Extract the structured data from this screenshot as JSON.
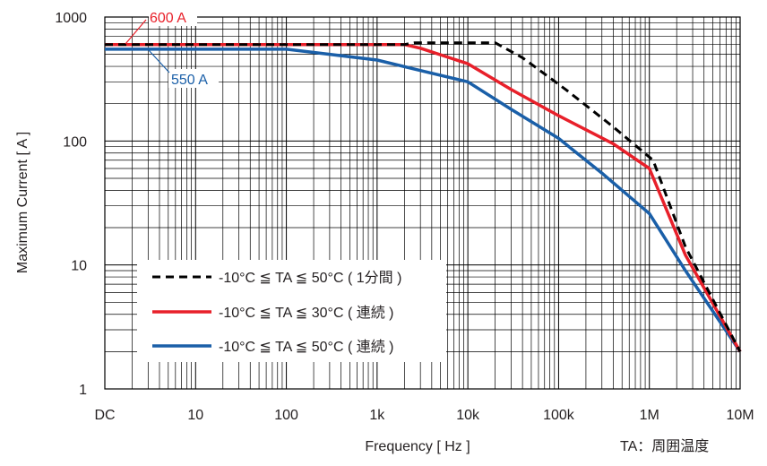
{
  "chart_data": {
    "type": "line",
    "xlabel": "Frequency [ Hz ]",
    "ylabel": "Maximum Current [ A ]",
    "x_scale": "log",
    "y_scale": "log",
    "x_ticks": [
      {
        "value": 1,
        "label": "DC"
      },
      {
        "value": 10,
        "label": "10"
      },
      {
        "value": 100,
        "label": "100"
      },
      {
        "value": 1000,
        "label": "1k"
      },
      {
        "value": 10000,
        "label": "10k"
      },
      {
        "value": 100000,
        "label": "100k"
      },
      {
        "value": 1000000,
        "label": "1M"
      },
      {
        "value": 10000000,
        "label": "10M"
      }
    ],
    "y_ticks": [
      {
        "value": 1,
        "label": "1"
      },
      {
        "value": 10,
        "label": "10"
      },
      {
        "value": 100,
        "label": "100"
      },
      {
        "value": 1000,
        "label": "1000"
      }
    ],
    "xlim": [
      1,
      10000000
    ],
    "ylim": [
      1,
      1000
    ],
    "grid": true,
    "legend_position": "bottom-left",
    "series": [
      {
        "name": "-10°C ≦ TA ≦ 50°C ( 1分間 )",
        "color": "#000000",
        "dash": true,
        "points": [
          [
            1,
            600
          ],
          [
            2000,
            600
          ],
          [
            2600,
            620
          ],
          [
            20000,
            620
          ],
          [
            40000,
            470
          ],
          [
            120000,
            260
          ],
          [
            400000,
            130
          ],
          [
            1100000,
            70
          ],
          [
            2500000,
            14
          ],
          [
            10000000,
            2
          ]
        ]
      },
      {
        "name": "-10°C ≦ TA ≦ 30°C ( 連続 )",
        "color": "#e8202a",
        "dash": false,
        "points": [
          [
            1,
            600
          ],
          [
            2000,
            600
          ],
          [
            3000,
            560
          ],
          [
            10000,
            420
          ],
          [
            30000,
            260
          ],
          [
            100000,
            160
          ],
          [
            400000,
            95
          ],
          [
            1000000,
            60
          ],
          [
            2500000,
            12
          ],
          [
            10000000,
            2
          ]
        ]
      },
      {
        "name": "-10°C ≦ TA ≦ 50°C ( 連続 )",
        "color": "#1a5fa8",
        "dash": false,
        "points": [
          [
            1,
            550
          ],
          [
            100,
            550
          ],
          [
            300,
            500
          ],
          [
            1000,
            450
          ],
          [
            3000,
            370
          ],
          [
            10000,
            300
          ],
          [
            30000,
            180
          ],
          [
            100000,
            105
          ],
          [
            300000,
            55
          ],
          [
            1000000,
            26
          ],
          [
            2500000,
            9
          ],
          [
            10000000,
            2
          ]
        ]
      }
    ],
    "annotations": [
      {
        "text": "600 A",
        "color": "#e8202a"
      },
      {
        "text": "550 A",
        "color": "#1a5fa8"
      }
    ],
    "footnote": "TA：周囲温度"
  }
}
